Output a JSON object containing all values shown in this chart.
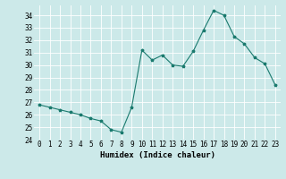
{
  "x": [
    0,
    1,
    2,
    3,
    4,
    5,
    6,
    7,
    8,
    9,
    10,
    11,
    12,
    13,
    14,
    15,
    16,
    17,
    18,
    19,
    20,
    21,
    22,
    23
  ],
  "y": [
    26.8,
    26.6,
    26.4,
    26.2,
    26.0,
    25.7,
    25.5,
    24.8,
    24.6,
    26.6,
    31.2,
    30.4,
    30.8,
    30.0,
    29.9,
    31.1,
    32.8,
    34.4,
    34.0,
    32.3,
    31.7,
    30.6,
    30.1,
    28.4
  ],
  "xlim": [
    -0.5,
    23.5
  ],
  "ylim": [
    24,
    34.8
  ],
  "yticks": [
    24,
    25,
    26,
    27,
    28,
    29,
    30,
    31,
    32,
    33,
    34
  ],
  "xticks": [
    0,
    1,
    2,
    3,
    4,
    5,
    6,
    7,
    8,
    9,
    10,
    11,
    12,
    13,
    14,
    15,
    16,
    17,
    18,
    19,
    20,
    21,
    22,
    23
  ],
  "xlabel": "Humidex (Indice chaleur)",
  "line_color": "#1a7a6e",
  "marker": "*",
  "bg_color": "#cce9e9",
  "grid_color": "#ffffff",
  "tick_fontsize": 5.5,
  "label_fontsize": 6.5
}
